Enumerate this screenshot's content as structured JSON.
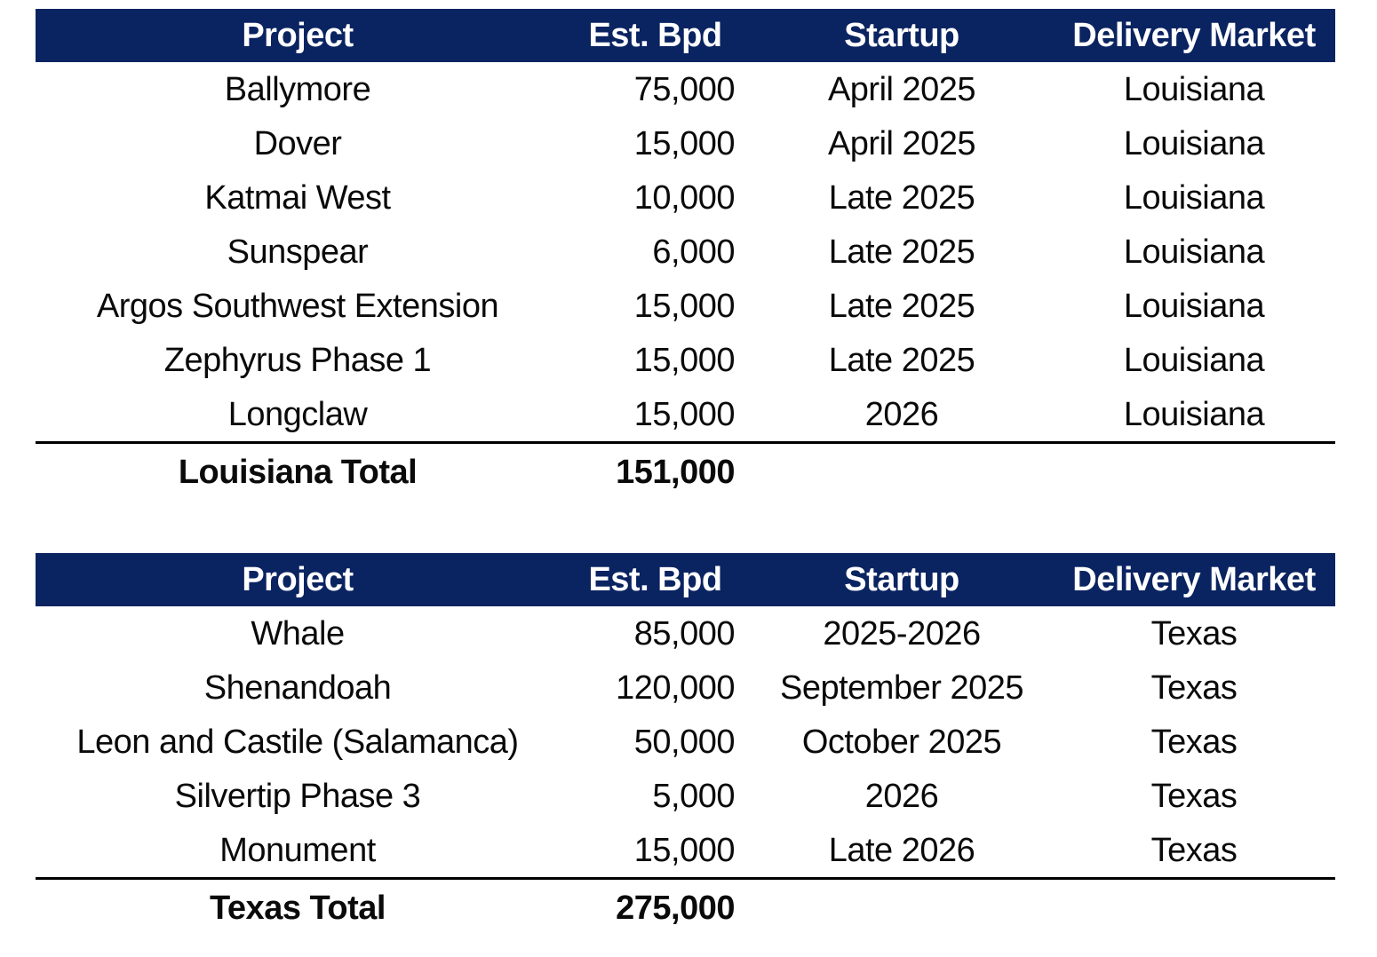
{
  "colors": {
    "header_bg": "#0a2361",
    "header_text": "#ffffff",
    "body_text": "#0a0a0a",
    "rule_line": "#000000"
  },
  "tables": [
    {
      "name": "louisiana-projects",
      "columns": [
        "Project",
        "Est. Bpd",
        "Startup",
        "Delivery Market"
      ],
      "rows": [
        [
          "Ballymore",
          "75,000",
          "April 2025",
          "Louisiana"
        ],
        [
          "Dover",
          "15,000",
          "April 2025",
          "Louisiana"
        ],
        [
          "Katmai West",
          "10,000",
          "Late 2025",
          "Louisiana"
        ],
        [
          "Sunspear",
          "6,000",
          "Late 2025",
          "Louisiana"
        ],
        [
          "Argos Southwest Extension",
          "15,000",
          "Late 2025",
          "Louisiana"
        ],
        [
          "Zephyrus Phase 1",
          "15,000",
          "Late 2025",
          "Louisiana"
        ],
        [
          "Longclaw",
          "15,000",
          "2026",
          "Louisiana"
        ]
      ],
      "total": {
        "label": "Louisiana Total",
        "value": "151,000"
      }
    },
    {
      "name": "texas-projects",
      "columns": [
        "Project",
        "Est. Bpd",
        "Startup",
        "Delivery Market"
      ],
      "rows": [
        [
          "Whale",
          "85,000",
          "2025-2026",
          "Texas"
        ],
        [
          "Shenandoah",
          "120,000",
          "September 2025",
          "Texas"
        ],
        [
          "Leon and Castile (Salamanca)",
          "50,000",
          "October 2025",
          "Texas"
        ],
        [
          "Silvertip Phase 3",
          "5,000",
          "2026",
          "Texas"
        ],
        [
          "Monument",
          "15,000",
          "Late 2026",
          "Texas"
        ]
      ],
      "total": {
        "label": "Texas Total",
        "value": "275,000"
      }
    }
  ]
}
